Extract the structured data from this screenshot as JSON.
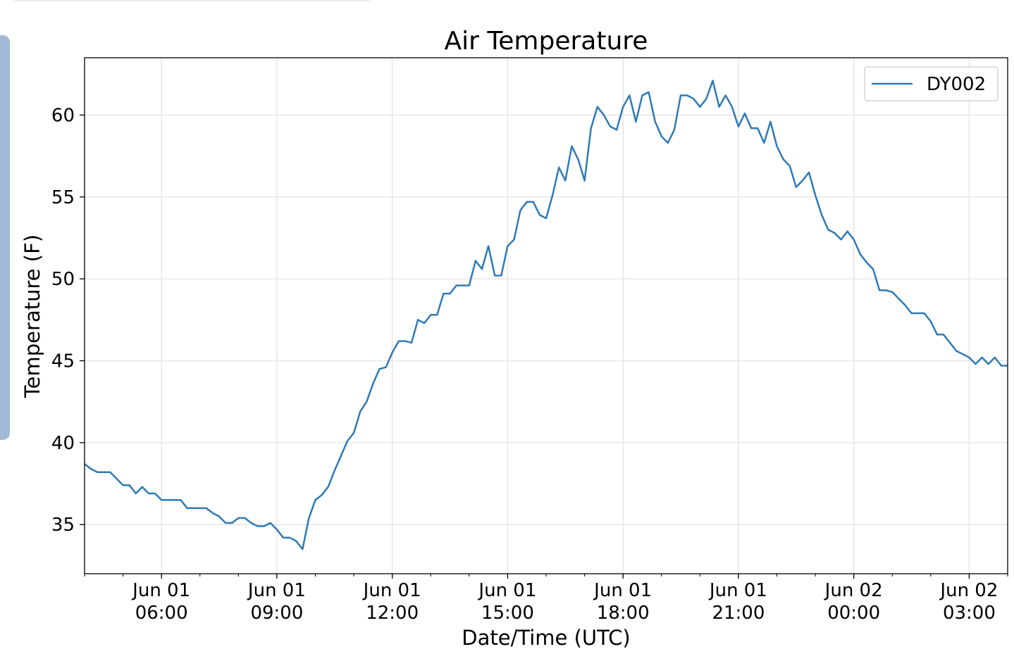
{
  "chart_data": {
    "type": "line",
    "title": "Air Temperature",
    "xlabel": "Date/Time (UTC)",
    "ylabel": "Temperature (F)",
    "xlim": [
      "Jun 01 04:00",
      "Jun 02 04:00"
    ],
    "ylim": [
      32.0,
      63.5
    ],
    "yticks": [
      35,
      40,
      45,
      50,
      55,
      60
    ],
    "xticks": [
      {
        "t": "Jun 01 06:00",
        "line1": "Jun 01",
        "line2": "06:00"
      },
      {
        "t": "Jun 01 09:00",
        "line1": "Jun 01",
        "line2": "09:00"
      },
      {
        "t": "Jun 01 12:00",
        "line1": "Jun 01",
        "line2": "12:00"
      },
      {
        "t": "Jun 01 15:00",
        "line1": "Jun 01",
        "line2": "15:00"
      },
      {
        "t": "Jun 01 18:00",
        "line1": "Jun 01",
        "line2": "18:00"
      },
      {
        "t": "Jun 01 21:00",
        "line1": "Jun 01",
        "line2": "21:00"
      },
      {
        "t": "Jun 02 00:00",
        "line1": "Jun 02",
        "line2": "00:00"
      },
      {
        "t": "Jun 02 03:00",
        "line1": "Jun 02",
        "line2": "03:00"
      }
    ],
    "grid": true,
    "legend_position": "top-right",
    "series": [
      {
        "name": "DY002",
        "color": "#2e7ab5",
        "points": [
          [
            "Jun 01 04:00",
            38.7
          ],
          [
            "Jun 01 04:10",
            38.4
          ],
          [
            "Jun 01 04:20",
            38.2
          ],
          [
            "Jun 01 04:40",
            38.2
          ],
          [
            "Jun 01 04:50",
            37.8
          ],
          [
            "Jun 01 05:00",
            37.4
          ],
          [
            "Jun 01 05:10",
            37.4
          ],
          [
            "Jun 01 05:20",
            36.9
          ],
          [
            "Jun 01 05:30",
            37.3
          ],
          [
            "Jun 01 05:40",
            36.9
          ],
          [
            "Jun 01 05:50",
            36.9
          ],
          [
            "Jun 01 06:00",
            36.5
          ],
          [
            "Jun 01 06:30",
            36.5
          ],
          [
            "Jun 01 06:40",
            36.0
          ],
          [
            "Jun 01 07:10",
            36.0
          ],
          [
            "Jun 01 07:20",
            35.7
          ],
          [
            "Jun 01 07:30",
            35.5
          ],
          [
            "Jun 01 07:40",
            35.1
          ],
          [
            "Jun 01 07:50",
            35.1
          ],
          [
            "Jun 01 08:00",
            35.4
          ],
          [
            "Jun 01 08:10",
            35.4
          ],
          [
            "Jun 01 08:20",
            35.1
          ],
          [
            "Jun 01 08:30",
            34.9
          ],
          [
            "Jun 01 08:40",
            34.9
          ],
          [
            "Jun 01 08:50",
            35.1
          ],
          [
            "Jun 01 09:00",
            34.7
          ],
          [
            "Jun 01 09:10",
            34.2
          ],
          [
            "Jun 01 09:20",
            34.2
          ],
          [
            "Jun 01 09:30",
            34.0
          ],
          [
            "Jun 01 09:40",
            33.5
          ],
          [
            "Jun 01 09:50",
            35.4
          ],
          [
            "Jun 01 10:00",
            36.5
          ],
          [
            "Jun 01 10:10",
            36.8
          ],
          [
            "Jun 01 10:20",
            37.3
          ],
          [
            "Jun 01 10:30",
            38.3
          ],
          [
            "Jun 01 10:40",
            39.2
          ],
          [
            "Jun 01 10:50",
            40.1
          ],
          [
            "Jun 01 11:00",
            40.6
          ],
          [
            "Jun 01 11:10",
            41.9
          ],
          [
            "Jun 01 11:20",
            42.5
          ],
          [
            "Jun 01 11:30",
            43.6
          ],
          [
            "Jun 01 11:40",
            44.5
          ],
          [
            "Jun 01 11:50",
            44.6
          ],
          [
            "Jun 01 12:00",
            45.5
          ],
          [
            "Jun 01 12:10",
            46.2
          ],
          [
            "Jun 01 12:20",
            46.2
          ],
          [
            "Jun 01 12:30",
            46.1
          ],
          [
            "Jun 01 12:40",
            47.5
          ],
          [
            "Jun 01 12:50",
            47.3
          ],
          [
            "Jun 01 13:00",
            47.8
          ],
          [
            "Jun 01 13:10",
            47.8
          ],
          [
            "Jun 01 13:20",
            49.1
          ],
          [
            "Jun 01 13:30",
            49.1
          ],
          [
            "Jun 01 13:40",
            49.6
          ],
          [
            "Jun 01 14:00",
            49.6
          ],
          [
            "Jun 01 14:10",
            51.1
          ],
          [
            "Jun 01 14:20",
            50.6
          ],
          [
            "Jun 01 14:30",
            52.0
          ],
          [
            "Jun 01 14:40",
            50.2
          ],
          [
            "Jun 01 14:50",
            50.2
          ],
          [
            "Jun 01 15:00",
            52.0
          ],
          [
            "Jun 01 15:10",
            52.4
          ],
          [
            "Jun 01 15:20",
            54.2
          ],
          [
            "Jun 01 15:30",
            54.7
          ],
          [
            "Jun 01 15:40",
            54.7
          ],
          [
            "Jun 01 15:50",
            53.9
          ],
          [
            "Jun 01 16:00",
            53.7
          ],
          [
            "Jun 01 16:10",
            55.1
          ],
          [
            "Jun 01 16:20",
            56.8
          ],
          [
            "Jun 01 16:30",
            56.0
          ],
          [
            "Jun 01 16:40",
            58.1
          ],
          [
            "Jun 01 16:50",
            57.3
          ],
          [
            "Jun 01 17:00",
            56.0
          ],
          [
            "Jun 01 17:10",
            59.2
          ],
          [
            "Jun 01 17:20",
            60.5
          ],
          [
            "Jun 01 17:30",
            60.0
          ],
          [
            "Jun 01 17:40",
            59.3
          ],
          [
            "Jun 01 17:50",
            59.1
          ],
          [
            "Jun 01 18:00",
            60.5
          ],
          [
            "Jun 01 18:10",
            61.2
          ],
          [
            "Jun 01 18:20",
            59.6
          ],
          [
            "Jun 01 18:30",
            61.2
          ],
          [
            "Jun 01 18:40",
            61.4
          ],
          [
            "Jun 01 18:50",
            59.6
          ],
          [
            "Jun 01 19:00",
            58.7
          ],
          [
            "Jun 01 19:10",
            58.3
          ],
          [
            "Jun 01 19:20",
            59.1
          ],
          [
            "Jun 01 19:30",
            61.2
          ],
          [
            "Jun 01 19:40",
            61.2
          ],
          [
            "Jun 01 19:50",
            61.0
          ],
          [
            "Jun 01 20:00",
            60.5
          ],
          [
            "Jun 01 20:10",
            61.0
          ],
          [
            "Jun 01 20:20",
            62.1
          ],
          [
            "Jun 01 20:30",
            60.5
          ],
          [
            "Jun 01 20:40",
            61.2
          ],
          [
            "Jun 01 20:50",
            60.5
          ],
          [
            "Jun 01 21:00",
            59.3
          ],
          [
            "Jun 01 21:10",
            60.1
          ],
          [
            "Jun 01 21:20",
            59.2
          ],
          [
            "Jun 01 21:30",
            59.2
          ],
          [
            "Jun 01 21:40",
            58.3
          ],
          [
            "Jun 01 21:50",
            59.6
          ],
          [
            "Jun 01 22:00",
            58.1
          ],
          [
            "Jun 01 22:10",
            57.3
          ],
          [
            "Jun 01 22:20",
            56.9
          ],
          [
            "Jun 01 22:30",
            55.6
          ],
          [
            "Jun 01 22:40",
            56.0
          ],
          [
            "Jun 01 22:50",
            56.5
          ],
          [
            "Jun 01 23:00",
            55.1
          ],
          [
            "Jun 01 23:10",
            53.9
          ],
          [
            "Jun 01 23:20",
            53.0
          ],
          [
            "Jun 01 23:30",
            52.8
          ],
          [
            "Jun 01 23:40",
            52.4
          ],
          [
            "Jun 01 23:50",
            52.9
          ],
          [
            "Jun 02 00:00",
            52.4
          ],
          [
            "Jun 02 00:10",
            51.5
          ],
          [
            "Jun 02 00:20",
            51.0
          ],
          [
            "Jun 02 00:30",
            50.6
          ],
          [
            "Jun 02 00:40",
            49.3
          ],
          [
            "Jun 02 00:50",
            49.3
          ],
          [
            "Jun 02 01:00",
            49.2
          ],
          [
            "Jun 02 01:10",
            48.8
          ],
          [
            "Jun 02 01:20",
            48.4
          ],
          [
            "Jun 02 01:30",
            47.9
          ],
          [
            "Jun 02 01:50",
            47.9
          ],
          [
            "Jun 02 02:00",
            47.4
          ],
          [
            "Jun 02 02:10",
            46.6
          ],
          [
            "Jun 02 02:20",
            46.6
          ],
          [
            "Jun 02 02:30",
            46.1
          ],
          [
            "Jun 02 02:40",
            45.6
          ],
          [
            "Jun 02 02:50",
            45.4
          ],
          [
            "Jun 02 03:00",
            45.2
          ],
          [
            "Jun 02 03:10",
            44.8
          ],
          [
            "Jun 02 03:20",
            45.2
          ],
          [
            "Jun 02 03:30",
            44.8
          ],
          [
            "Jun 02 03:40",
            45.2
          ],
          [
            "Jun 02 03:50",
            44.7
          ],
          [
            "Jun 02 04:00",
            44.7
          ]
        ]
      }
    ]
  }
}
